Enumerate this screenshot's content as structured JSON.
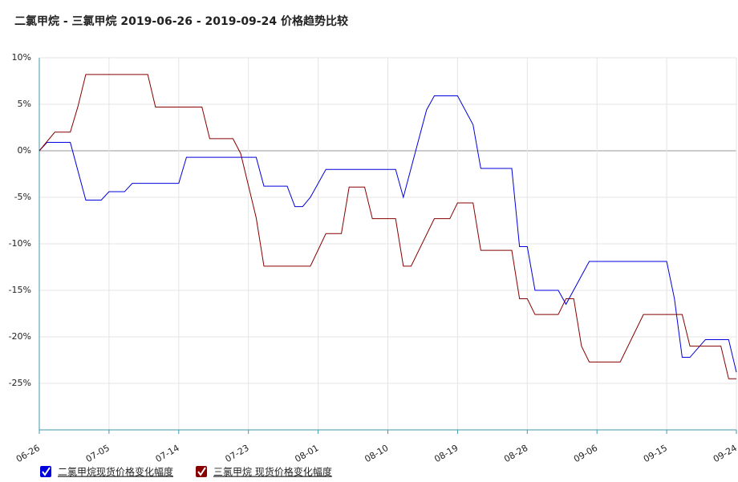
{
  "chart_data": {
    "type": "line",
    "title": "二氯甲烷 - 三氯甲烷 2019-06-26 - 2019-09-24 价格趋势比较",
    "xlim": [
      "06-26",
      "09-24"
    ],
    "xticks": [
      "06-26",
      "07-05",
      "07-14",
      "07-23",
      "08-01",
      "08-10",
      "08-19",
      "08-28",
      "09-06",
      "09-15",
      "09-24"
    ],
    "ylim": [
      -30,
      10
    ],
    "yticks": [
      {
        "value": 10,
        "label": "10%"
      },
      {
        "value": 5,
        "label": "5%"
      },
      {
        "value": 0,
        "label": "0%"
      },
      {
        "value": -5,
        "label": "-5%"
      },
      {
        "value": -10,
        "label": "-10%"
      },
      {
        "value": -15,
        "label": "-15%"
      },
      {
        "value": -20,
        "label": "-20%"
      },
      {
        "value": -25,
        "label": "-25%"
      }
    ],
    "grid": true,
    "series": [
      {
        "name": "二氯甲烷现货价格变化幅度",
        "color": "#0000dd",
        "x": [
          "06-26",
          "06-27",
          "06-30",
          "07-02",
          "07-04",
          "07-05",
          "07-07",
          "07-08",
          "07-14",
          "07-15",
          "07-24",
          "07-25",
          "07-28",
          "07-29",
          "07-30",
          "07-31",
          "08-02",
          "08-11",
          "08-12",
          "08-15",
          "08-16",
          "08-19",
          "08-21",
          "08-22",
          "08-26",
          "08-27",
          "08-28",
          "08-29",
          "09-01",
          "09-02",
          "09-05",
          "09-15",
          "09-16",
          "09-17",
          "09-18",
          "09-20",
          "09-23",
          "09-24"
        ],
        "values": [
          0,
          0.9,
          0.9,
          -5.3,
          -5.3,
          -4.4,
          -4.4,
          -3.5,
          -3.5,
          -0.7,
          -0.7,
          -3.8,
          -3.8,
          -6.0,
          -6.0,
          -5.0,
          -2.0,
          -2.0,
          -5.0,
          4.4,
          5.9,
          5.9,
          2.8,
          -1.9,
          -1.9,
          -10.3,
          -10.3,
          -15.0,
          -15.0,
          -16.5,
          -11.9,
          -11.9,
          -15.9,
          -22.2,
          -22.2,
          -20.3,
          -20.3,
          -23.8
        ]
      },
      {
        "name": "三氯甲烷 现货价格变化幅度",
        "color": "#880000",
        "x": [
          "06-26",
          "06-28",
          "06-30",
          "07-01",
          "07-02",
          "07-10",
          "07-11",
          "07-17",
          "07-18",
          "07-21",
          "07-22",
          "07-24",
          "07-25",
          "07-31",
          "08-02",
          "08-04",
          "08-05",
          "08-07",
          "08-08",
          "08-11",
          "08-12",
          "08-13",
          "08-16",
          "08-18",
          "08-19",
          "08-21",
          "08-22",
          "08-26",
          "08-27",
          "08-28",
          "08-29",
          "09-01",
          "09-02",
          "09-03",
          "09-04",
          "09-05",
          "09-09",
          "09-12",
          "09-17",
          "09-18",
          "09-22",
          "09-23",
          "09-24"
        ],
        "values": [
          0,
          2.0,
          2.0,
          4.8,
          8.2,
          8.2,
          4.7,
          4.7,
          1.3,
          1.3,
          -0.3,
          -7.2,
          -12.4,
          -12.4,
          -8.9,
          -8.9,
          -3.9,
          -3.9,
          -7.3,
          -7.3,
          -12.4,
          -12.4,
          -7.3,
          -7.3,
          -5.6,
          -5.6,
          -10.7,
          -10.7,
          -15.9,
          -15.9,
          -17.6,
          -17.6,
          -15.9,
          -15.9,
          -21.0,
          -22.7,
          -22.7,
          -17.6,
          -17.6,
          -21.0,
          -21.0,
          -24.5,
          -24.5
        ]
      }
    ]
  }
}
